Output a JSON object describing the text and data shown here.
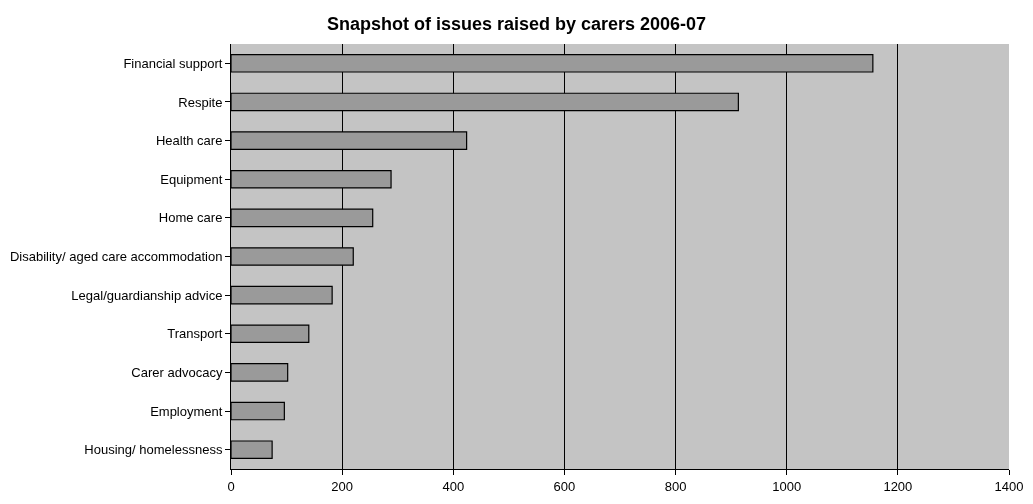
{
  "chart_data": {
    "type": "bar",
    "orientation": "horizontal",
    "title": "Snapshot of issues raised by carers 2006-07",
    "categories": [
      "Financial support",
      "Respite",
      "Health care",
      "Equipment",
      "Home care",
      "Disability/ aged care accommodation",
      "Legal/guardianship advice",
      "Transport",
      "Carer advocacy",
      "Employment",
      "Housing/ homelessness"
    ],
    "values": [
      1155,
      913,
      424,
      288,
      255,
      220,
      182,
      140,
      102,
      96,
      74
    ],
    "color": "#9a9a9a",
    "xlim": [
      0,
      1400
    ],
    "xticks": [
      0,
      200,
      400,
      600,
      800,
      1000,
      1200,
      1400
    ],
    "grid": "x"
  }
}
